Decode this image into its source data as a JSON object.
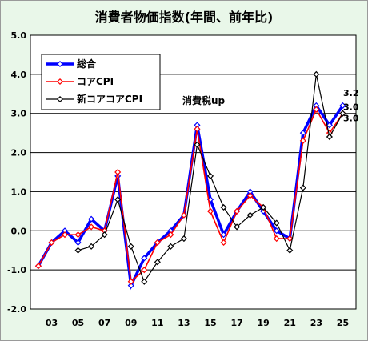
{
  "chart_data": {
    "type": "line",
    "title": "消費者物価指数(年間、前年比)",
    "xlabel": "",
    "ylabel": "",
    "ylim": [
      -2.0,
      5.0
    ],
    "ytick_labels": [
      "5.0",
      "4.0",
      "3.0",
      "2.0",
      "1.0",
      "0.0",
      "-1.0",
      "-2.0"
    ],
    "xtick_labels": [
      "03",
      "05",
      "07",
      "09",
      "11",
      "13",
      "15",
      "17",
      "19",
      "21",
      "23",
      "25"
    ],
    "x": [
      2002,
      2003,
      2004,
      2005,
      2006,
      2007,
      2008,
      2009,
      2010,
      2011,
      2012,
      2013,
      2014,
      2015,
      2016,
      2017,
      2018,
      2019,
      2020,
      2021,
      2022,
      2023,
      2024,
      2025
    ],
    "series": [
      {
        "name": "総合",
        "color": "#0000ff",
        "values": [
          -0.9,
          -0.3,
          0.0,
          -0.3,
          0.3,
          0.0,
          1.4,
          -1.4,
          -0.7,
          -0.3,
          0.0,
          0.4,
          2.7,
          0.8,
          -0.1,
          0.5,
          1.0,
          0.5,
          0.0,
          -0.2,
          2.5,
          3.2,
          2.7,
          3.2
        ]
      },
      {
        "name": "コアCPI",
        "color": "#ff0000",
        "values": [
          -0.9,
          -0.3,
          -0.1,
          -0.1,
          0.1,
          0.0,
          1.5,
          -1.3,
          -1.0,
          -0.3,
          -0.1,
          0.4,
          2.6,
          0.5,
          -0.3,
          0.5,
          0.9,
          0.6,
          -0.2,
          -0.2,
          2.3,
          3.1,
          2.5,
          3.0
        ]
      },
      {
        "name": "新コアコアCPI",
        "color": "#000000",
        "values": [
          null,
          null,
          null,
          -0.5,
          -0.4,
          -0.1,
          0.8,
          -0.4,
          -1.3,
          -0.8,
          -0.4,
          -0.2,
          2.2,
          1.4,
          0.6,
          0.1,
          0.4,
          0.6,
          0.2,
          -0.5,
          1.1,
          4.0,
          2.4,
          3.0
        ]
      }
    ],
    "end_labels": [
      {
        "text": "3.2",
        "color": "#0000ff"
      },
      {
        "text": "3.0",
        "color": "#ff0000"
      },
      {
        "text": "3.0",
        "color": "#000000"
      }
    ],
    "annotation": "消費税up",
    "legend_position": "top-left",
    "grid": true
  }
}
